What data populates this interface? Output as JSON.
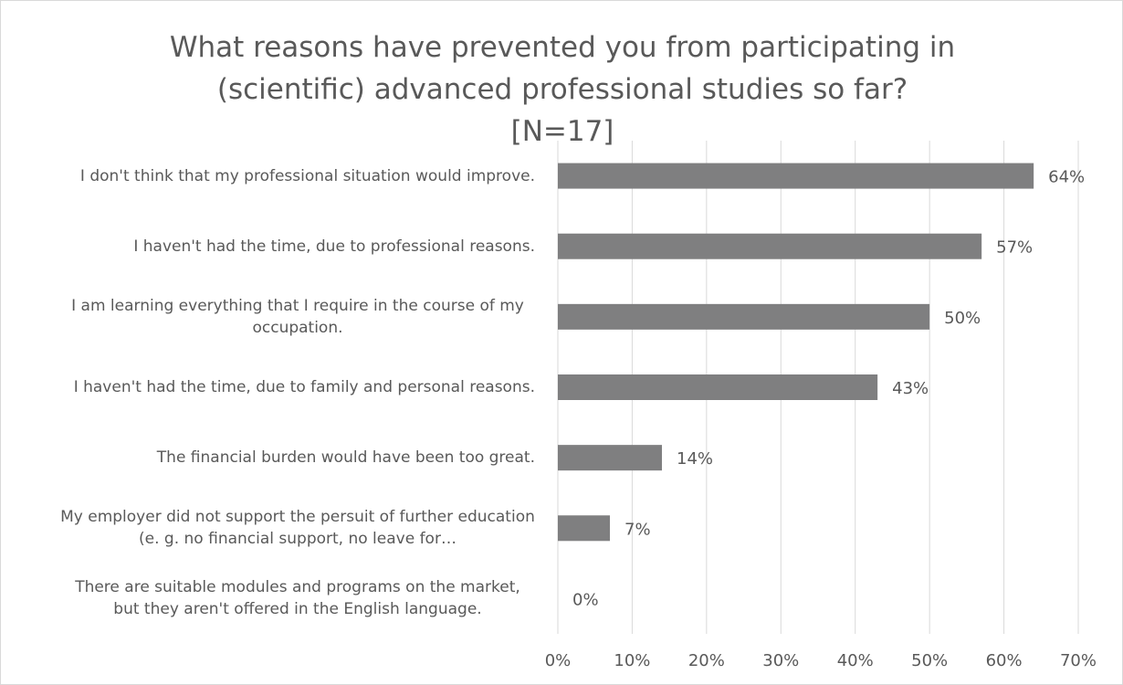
{
  "chart_data": {
    "type": "bar",
    "orientation": "horizontal",
    "title": "What reasons have prevented you from participating in (scientific) advanced professional studies so far? [N=17]",
    "categories": [
      "I don't think that my professional situation would improve.",
      "I haven't had the time, due to professional reasons.",
      "I am learning everything that I require in the course of my occupation.",
      "I haven't had the time, due to family and personal reasons.",
      "The financial burden would have been too great.",
      "My employer did not support the persuit of further education (e. g. no financial support, no leave for…",
      "There are suitable modules and programs on the market, but they aren't offered in the English language."
    ],
    "values": [
      64,
      57,
      50,
      43,
      14,
      7,
      0
    ],
    "value_labels": [
      "64%",
      "57%",
      "50%",
      "43%",
      "14%",
      "7%",
      "0%"
    ],
    "color": "#7f7f80",
    "xlim": [
      0,
      70
    ],
    "xticks": [
      {
        "value": 0,
        "label": "0%"
      },
      {
        "value": 10,
        "label": "10%"
      },
      {
        "value": 20,
        "label": "20%"
      },
      {
        "value": 30,
        "label": "30%"
      },
      {
        "value": 40,
        "label": "40%"
      },
      {
        "value": 50,
        "label": "50%"
      },
      {
        "value": 60,
        "label": "60%"
      },
      {
        "value": 70,
        "label": "70%"
      }
    ],
    "grid": true
  }
}
